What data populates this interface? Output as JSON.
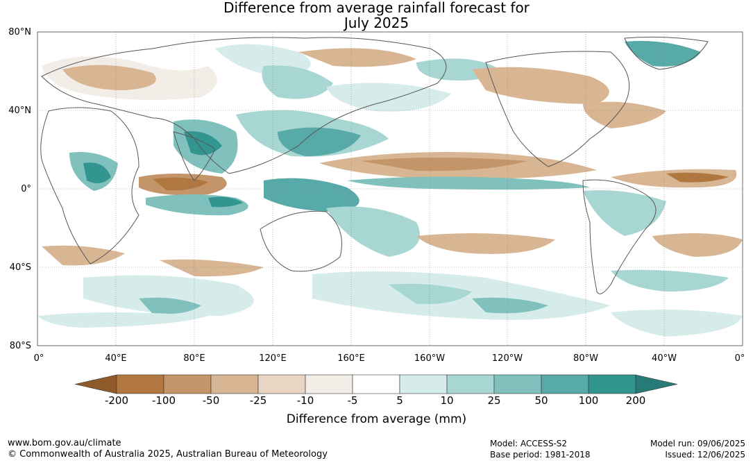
{
  "title_line1": "Difference from average rainfall forecast for",
  "title_line2": "July 2025",
  "lat_labels": [
    "80°N",
    "40°N",
    "0°",
    "40°S",
    "80°S"
  ],
  "lon_labels": [
    "0°",
    "40°E",
    "80°E",
    "120°E",
    "160°E",
    "160°W",
    "120°W",
    "80°W",
    "40°W",
    "0°"
  ],
  "colorbar": {
    "title": "Difference from average (mm)",
    "labels": [
      "-200",
      "-100",
      "-50",
      "-25",
      "-10",
      "-5",
      "5",
      "10",
      "25",
      "50",
      "100",
      "200"
    ],
    "colors": [
      "#8e5a2a",
      "#b07840",
      "#c49568",
      "#d8b694",
      "#e8d5c3",
      "#f3ede8",
      "#ffffff",
      "#d5ecea",
      "#a8d6d3",
      "#80c0bd",
      "#58aaa8",
      "#33958f",
      "#277a75"
    ]
  },
  "footer": {
    "website": "www.bom.gov.au/climate",
    "copyright": "© Commonwealth of Australia 2025, Australian Bureau of Meteorology",
    "model": "Model: ACCESS-S2",
    "base_period": "Base period: 1981-2018",
    "model_run": "Model run: 09/06/2025",
    "issued": "Issued: 12/06/2025"
  }
}
